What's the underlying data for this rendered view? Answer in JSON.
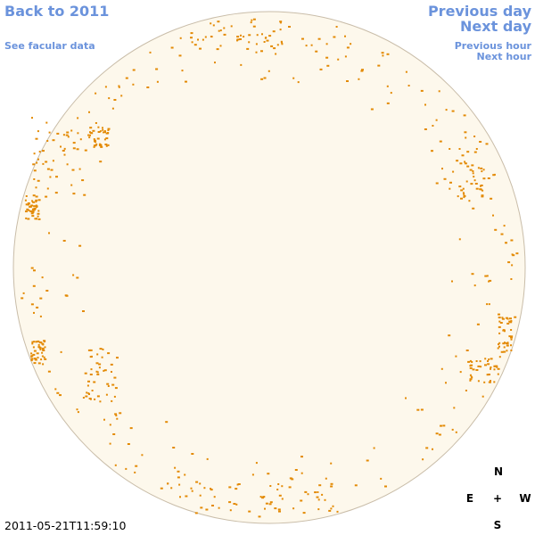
{
  "links": {
    "back": "Back to 2011",
    "facular": "See facular data",
    "previous_day": "Previous day",
    "next_day": "Next day",
    "previous_hour": "Previous hour",
    "next_hour": "Next hour"
  },
  "timestamp": "2011-05-21T11:59:10",
  "compass": {
    "north": "N",
    "east": "E",
    "center": "+",
    "west": "W",
    "south": "S"
  }
}
